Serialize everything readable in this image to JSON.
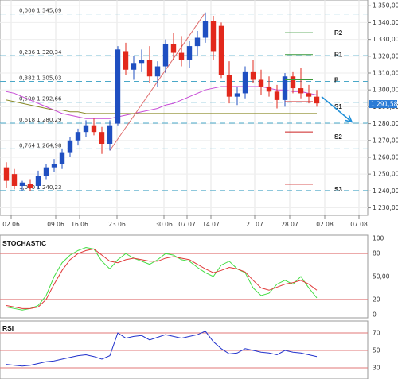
{
  "chart_data": [
    {
      "type": "candlestick",
      "pane": "price",
      "x_ticks": [
        "02.06",
        "09.06",
        "16.06",
        "23.06",
        "30.06",
        "07.07",
        "14.07",
        "21.07",
        "28.07",
        "02.08",
        "07.08"
      ],
      "y_ticks": [
        1230,
        1240,
        1250,
        1260,
        1270,
        1280,
        1290,
        1300,
        1310,
        1320,
        1330,
        1340,
        1350
      ],
      "y_tick_labels": [
        "1 230,00",
        "1 240,00",
        "1 250,00",
        "1 260,00",
        "1 270,00",
        "1 280,00",
        "1 290,00",
        "1 300,00",
        "1 310,00",
        "1 320,00",
        "1 330,00",
        "1 340,00",
        "1 350,00"
      ],
      "ylim": [
        1226,
        1352
      ],
      "last_price_label": "1 291,58",
      "last_price": 1291.58,
      "colors": {
        "bull": "#1f4fc1",
        "bear": "#e2281c",
        "ma_fast": "#c74ad6",
        "ma_slow": "#8c8c2a",
        "fib": "#4aa8c8",
        "trend": "#e07070",
        "arrow": "#1f8fd8",
        "level": "#3c9a3c",
        "support": "#cc2222"
      },
      "candles": [
        {
          "o": 1254,
          "h": 1257,
          "l": 1242,
          "c": 1246
        },
        {
          "o": 1250,
          "h": 1253,
          "l": 1241,
          "c": 1243
        },
        {
          "o": 1243,
          "h": 1246,
          "l": 1240,
          "c": 1245
        },
        {
          "o": 1244,
          "h": 1247,
          "l": 1240,
          "c": 1242
        },
        {
          "o": 1243,
          "h": 1252,
          "l": 1241,
          "c": 1249
        },
        {
          "o": 1249,
          "h": 1256,
          "l": 1247,
          "c": 1254
        },
        {
          "o": 1254,
          "h": 1259,
          "l": 1251,
          "c": 1256
        },
        {
          "o": 1256,
          "h": 1265,
          "l": 1253,
          "c": 1263
        },
        {
          "o": 1263,
          "h": 1272,
          "l": 1260,
          "c": 1270
        },
        {
          "o": 1270,
          "h": 1277,
          "l": 1267,
          "c": 1275
        },
        {
          "o": 1275,
          "h": 1282,
          "l": 1272,
          "c": 1279
        },
        {
          "o": 1279,
          "h": 1283,
          "l": 1273,
          "c": 1275
        },
        {
          "o": 1275,
          "h": 1278,
          "l": 1262,
          "c": 1268
        },
        {
          "o": 1268,
          "h": 1282,
          "l": 1264,
          "c": 1279
        },
        {
          "o": 1280,
          "h": 1326,
          "l": 1279,
          "c": 1324
        },
        {
          "o": 1323,
          "h": 1328,
          "l": 1309,
          "c": 1312
        },
        {
          "o": 1312,
          "h": 1320,
          "l": 1306,
          "c": 1316
        },
        {
          "o": 1316,
          "h": 1324,
          "l": 1311,
          "c": 1318
        },
        {
          "o": 1318,
          "h": 1326,
          "l": 1304,
          "c": 1308
        },
        {
          "o": 1308,
          "h": 1317,
          "l": 1302,
          "c": 1314
        },
        {
          "o": 1314,
          "h": 1330,
          "l": 1310,
          "c": 1327
        },
        {
          "o": 1327,
          "h": 1334,
          "l": 1318,
          "c": 1322
        },
        {
          "o": 1322,
          "h": 1332,
          "l": 1314,
          "c": 1318
        },
        {
          "o": 1318,
          "h": 1329,
          "l": 1313,
          "c": 1326
        },
        {
          "o": 1326,
          "h": 1335,
          "l": 1320,
          "c": 1331
        },
        {
          "o": 1331,
          "h": 1346,
          "l": 1328,
          "c": 1341
        },
        {
          "o": 1341,
          "h": 1344,
          "l": 1318,
          "c": 1323
        },
        {
          "o": 1338,
          "h": 1340,
          "l": 1307,
          "c": 1309
        },
        {
          "o": 1309,
          "h": 1317,
          "l": 1292,
          "c": 1296
        },
        {
          "o": 1296,
          "h": 1302,
          "l": 1291,
          "c": 1298
        },
        {
          "o": 1298,
          "h": 1314,
          "l": 1295,
          "c": 1311
        },
        {
          "o": 1311,
          "h": 1318,
          "l": 1304,
          "c": 1306
        },
        {
          "o": 1306,
          "h": 1312,
          "l": 1297,
          "c": 1302
        },
        {
          "o": 1302,
          "h": 1308,
          "l": 1296,
          "c": 1299
        },
        {
          "o": 1299,
          "h": 1303,
          "l": 1289,
          "c": 1294
        },
        {
          "o": 1294,
          "h": 1310,
          "l": 1290,
          "c": 1308
        },
        {
          "o": 1308,
          "h": 1311,
          "l": 1298,
          "c": 1301
        },
        {
          "o": 1301,
          "h": 1313,
          "l": 1295,
          "c": 1298
        },
        {
          "o": 1298,
          "h": 1303,
          "l": 1292,
          "c": 1296
        },
        {
          "o": 1296,
          "h": 1300,
          "l": 1290,
          "c": 1292
        }
      ],
      "moving_averages": [
        {
          "name": "ma_fast",
          "values": [
            1299,
            1298,
            1296,
            1294,
            1292,
            1290,
            1288,
            1286,
            1285,
            1284,
            1283,
            1283,
            1283,
            1283,
            1284,
            1285,
            1286,
            1287,
            1288,
            1289,
            1291,
            1292,
            1294,
            1296,
            1298,
            1300,
            1301,
            1302,
            1302,
            1302,
            1302,
            1302,
            1302,
            1301,
            1300,
            1300,
            1299,
            1299,
            1298,
            1297
          ]
        },
        {
          "name": "ma_slow",
          "values": [
            1294,
            1293,
            1292,
            1291,
            1290,
            1289,
            1288,
            1288,
            1287,
            1287,
            1286,
            1286,
            1286,
            1286,
            1286,
            1286,
            1286,
            1286,
            1286,
            1286,
            1286,
            1286,
            1286,
            1286,
            1286,
            1286,
            1286,
            1286,
            1286,
            1286,
            1286,
            1286,
            1286,
            1286,
            1286,
            1286,
            1286,
            1286,
            1286,
            1286
          ]
        }
      ],
      "fibonacci": [
        {
          "label": "0,000  1 345,09",
          "value": 1345.09
        },
        {
          "label": "0,236  1 320,34",
          "value": 1320.34
        },
        {
          "label": "0,382  1 305,03",
          "value": 1305.03
        },
        {
          "label": "0,500  1 292,66",
          "value": 1292.66
        },
        {
          "label": "0,618  1 280,29",
          "value": 1280.29
        },
        {
          "label": "0,764  1 264,98",
          "value": 1264.98
        },
        {
          "label": "1,000  1 240,23",
          "value": 1240.23
        }
      ],
      "pivot_levels": [
        {
          "label": "R2",
          "value": 1334,
          "kind": "resistance"
        },
        {
          "label": "R1",
          "value": 1321,
          "kind": "resistance"
        },
        {
          "label": "P",
          "value": 1306,
          "kind": "pivot"
        },
        {
          "label": "S1",
          "value": 1293,
          "kind": "support"
        },
        {
          "label": "S2",
          "value": 1275,
          "kind": "support"
        },
        {
          "label": "S3",
          "value": 1244,
          "kind": "support"
        }
      ]
    },
    {
      "type": "line",
      "pane": "oscillator",
      "title": "STOCHASTIC",
      "y_ticks": [
        0,
        20,
        50,
        80,
        100
      ],
      "y_tick_labels": [
        "0",
        "20",
        "50,00",
        "80",
        "100"
      ],
      "ylim": [
        0,
        100
      ],
      "guides": [
        20,
        80
      ],
      "series": [
        {
          "name": "k",
          "color": "#44dd44",
          "values": [
            10,
            8,
            6,
            8,
            12,
            25,
            50,
            68,
            78,
            84,
            88,
            86,
            70,
            60,
            72,
            80,
            74,
            70,
            66,
            72,
            80,
            78,
            72,
            70,
            62,
            55,
            50,
            65,
            70,
            60,
            55,
            35,
            25,
            28,
            40,
            45,
            40,
            50,
            35,
            22
          ]
        },
        {
          "name": "d",
          "color": "#e03a3a",
          "values": [
            12,
            10,
            8,
            8,
            10,
            20,
            40,
            58,
            72,
            80,
            84,
            86,
            78,
            70,
            68,
            72,
            74,
            72,
            70,
            70,
            74,
            76,
            74,
            72,
            66,
            60,
            55,
            58,
            62,
            60,
            56,
            45,
            35,
            32,
            36,
            40,
            42,
            45,
            40,
            32
          ]
        }
      ]
    },
    {
      "type": "line",
      "pane": "oscillator",
      "title": "RSI",
      "y_ticks": [
        30,
        50,
        70
      ],
      "y_tick_labels": [
        "30",
        "50",
        "70"
      ],
      "ylim": [
        20,
        80
      ],
      "guides": [
        30,
        50,
        70
      ],
      "series": [
        {
          "name": "rsi",
          "color": "#2233cc",
          "values": [
            34,
            33,
            32,
            33,
            35,
            37,
            38,
            40,
            42,
            44,
            45,
            43,
            40,
            44,
            70,
            64,
            66,
            67,
            62,
            65,
            68,
            66,
            64,
            66,
            68,
            72,
            60,
            52,
            46,
            47,
            52,
            50,
            48,
            47,
            45,
            50,
            48,
            47,
            45,
            43
          ]
        }
      ]
    }
  ]
}
